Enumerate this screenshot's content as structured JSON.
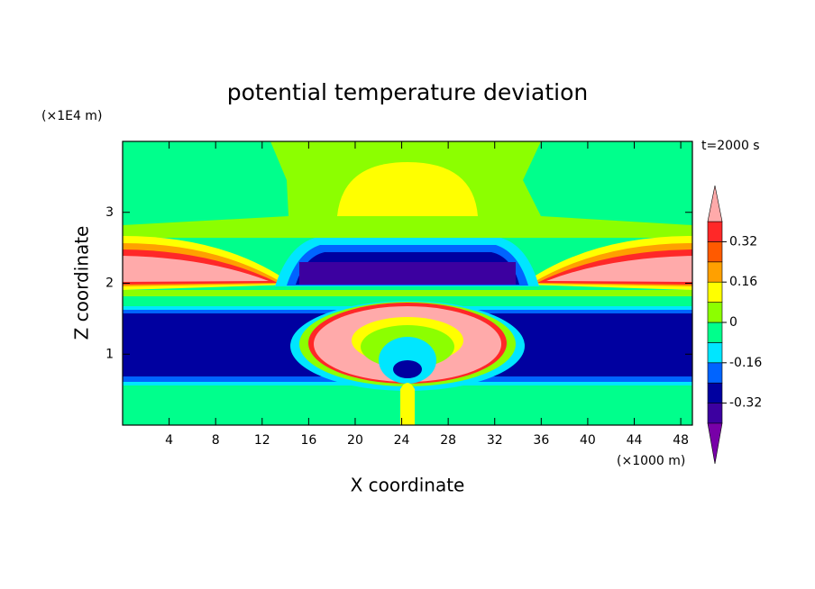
{
  "chart_data": {
    "type": "contour",
    "title": "potential temperature deviation",
    "x_label": "X coordinate",
    "y_label": "Z coordinate",
    "x_unit": "(×1000 m)",
    "y_unit": "(×1E4 m)",
    "annotation": "t=2000 s",
    "xlim": [
      0,
      49
    ],
    "ylim": [
      0,
      4
    ],
    "xticks": [
      4,
      8,
      12,
      16,
      20,
      24,
      28,
      32,
      36,
      40,
      44,
      48
    ],
    "yticks": [
      1,
      2,
      3
    ],
    "colorbar": {
      "levels": [
        -0.4,
        -0.32,
        -0.24,
        -0.16,
        -0.08,
        0,
        0.08,
        0.16,
        0.24,
        0.32,
        0.4
      ],
      "colors": [
        "#7800a8",
        "#3c00a0",
        "#0000a0",
        "#0064ff",
        "#00e6ff",
        "#00ff8c",
        "#8cff00",
        "#ffff00",
        "#ffa000",
        "#ff5a00",
        "#ff2828",
        "#ffaaaa"
      ],
      "ticks": [
        -0.32,
        -0.16,
        0,
        0.16,
        0.32
      ]
    }
  }
}
